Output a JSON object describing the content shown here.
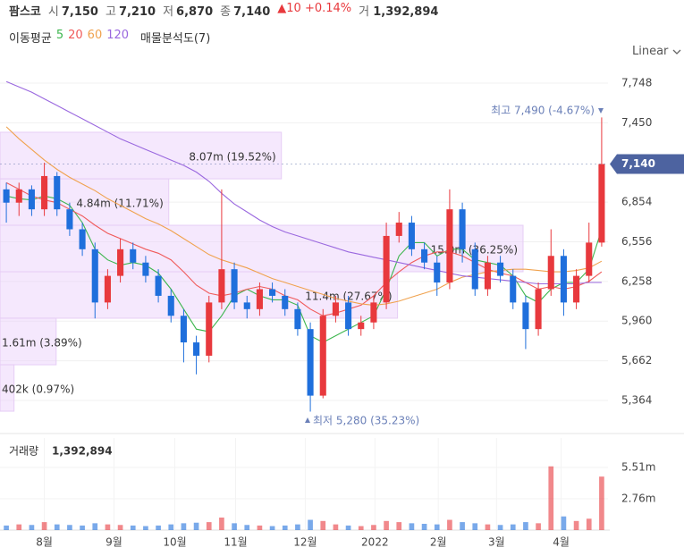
{
  "header": {
    "name": "팜스코",
    "items": [
      {
        "label": "시",
        "value": "7,150"
      },
      {
        "label": "고",
        "value": "7,210"
      },
      {
        "label": "저",
        "value": "6,870"
      },
      {
        "label": "종",
        "value": "7,140"
      }
    ],
    "change": "▲10 +0.14%",
    "volume": {
      "label": "거",
      "value": "1,392,894"
    },
    "ma_title": "이동평균",
    "profile_title": "매물분석도(7)",
    "scale_mode": "Linear"
  },
  "chart_data": {
    "type": "candlestick",
    "xlim": [
      -0.5,
      47.5
    ],
    "xticks": [
      {
        "value": 3.0,
        "label": "8월"
      },
      {
        "value": 8.5,
        "label": "9월"
      },
      {
        "value": 13.3,
        "label": "10월"
      },
      {
        "value": 18.1,
        "label": "11월"
      },
      {
        "value": 23.6,
        "label": "12월"
      },
      {
        "value": 29.1,
        "label": "2022"
      },
      {
        "value": 34.1,
        "label": "2월"
      },
      {
        "value": 38.7,
        "label": "3월"
      },
      {
        "value": 43.8,
        "label": "4월"
      }
    ],
    "ylim": [
      5216,
      7869
    ],
    "yticks": [
      {
        "value": 5364,
        "label": "5,364"
      },
      {
        "value": 5662,
        "label": "5,662"
      },
      {
        "value": 5960,
        "label": "5,960"
      },
      {
        "value": 6258,
        "label": "6,258"
      },
      {
        "value": 6556,
        "label": "6,556"
      },
      {
        "value": 6854,
        "label": "6,854"
      },
      {
        "value": 7450,
        "label": "7,450"
      },
      {
        "value": 7748,
        "label": "7,748"
      }
    ],
    "grid": true,
    "up_color": "#e8393d",
    "down_color": "#1f6fdc",
    "open": [
      6950,
      6850,
      6950,
      6800,
      7050,
      6800,
      6650,
      6500,
      6100,
      6300,
      6500,
      6400,
      6300,
      6150,
      6000,
      5800,
      5700,
      6100,
      6350,
      6100,
      6050,
      6200,
      6150,
      6050,
      5900,
      5400,
      6000,
      6100,
      5900,
      5950,
      6100,
      6600,
      6700,
      6500,
      6400,
      6250,
      6800,
      6500,
      6200,
      6400,
      6300,
      6100,
      5900,
      6200,
      6450,
      6100,
      6300,
      6550
    ],
    "high": [
      7000,
      7000,
      6980,
      7150,
      7080,
      6850,
      6700,
      6550,
      6350,
      6580,
      6550,
      6450,
      6350,
      6200,
      6050,
      5850,
      6150,
      6950,
      6400,
      6150,
      6250,
      6250,
      6200,
      6100,
      5950,
      6050,
      6150,
      6150,
      6000,
      6150,
      6700,
      6780,
      6750,
      6550,
      6450,
      6950,
      6850,
      6550,
      6450,
      6450,
      6350,
      6150,
      6250,
      6650,
      6500,
      6350,
      6700,
      7490
    ],
    "low": [
      6700,
      6750,
      6750,
      6750,
      6750,
      6600,
      6450,
      5980,
      6050,
      6250,
      6350,
      6250,
      6100,
      5950,
      5650,
      5560,
      5650,
      6050,
      6050,
      5980,
      6000,
      6100,
      6000,
      5850,
      5280,
      5380,
      5950,
      5850,
      5850,
      5900,
      6050,
      6550,
      6450,
      6350,
      6150,
      6200,
      6400,
      6150,
      6150,
      6250,
      6050,
      5750,
      5850,
      6150,
      6000,
      6050,
      6250,
      6520
    ],
    "close": [
      6850,
      6950,
      6800,
      7050,
      6800,
      6650,
      6500,
      6100,
      6300,
      6500,
      6400,
      6300,
      6150,
      6000,
      5800,
      5700,
      6100,
      6350,
      6100,
      6050,
      6200,
      6150,
      6050,
      5900,
      5400,
      6000,
      6100,
      5900,
      5950,
      6100,
      6600,
      6700,
      6500,
      6400,
      6250,
      6800,
      6500,
      6200,
      6400,
      6300,
      6100,
      5900,
      6200,
      6450,
      6100,
      6300,
      6550,
      7140
    ],
    "series": [
      {
        "name": "5",
        "color": "#3db64e",
        "values": [
          6900,
          6880,
          6870,
          6900,
          6880,
          6830,
          6700,
          6500,
          6420,
          6380,
          6400,
          6380,
          6320,
          6200,
          6050,
          5900,
          5880,
          6000,
          6150,
          6200,
          6150,
          6120,
          6120,
          6080,
          5850,
          5800,
          5850,
          5900,
          5950,
          6000,
          6200,
          6450,
          6550,
          6550,
          6450,
          6500,
          6500,
          6420,
          6400,
          6380,
          6300,
          6150,
          6100,
          6200,
          6250,
          6250,
          6350,
          6650
        ]
      },
      {
        "name": "20",
        "color": "#f05a5a",
        "values": [
          7000,
          6950,
          6900,
          6870,
          6850,
          6800,
          6750,
          6680,
          6620,
          6580,
          6540,
          6500,
          6470,
          6420,
          6330,
          6230,
          6170,
          6150,
          6170,
          6200,
          6220,
          6200,
          6150,
          6120,
          6050,
          6000,
          6020,
          6050,
          6080,
          6150,
          6250,
          6330,
          6400,
          6450,
          6480,
          6480,
          6450,
          6400,
          6350,
          6320,
          6300,
          6250,
          6200,
          6220,
          6200,
          6220,
          6260,
          6330
        ]
      },
      {
        "name": "60",
        "color": "#f0a24e",
        "values": [
          7420,
          7330,
          7250,
          7170,
          7100,
          7040,
          6990,
          6940,
          6880,
          6830,
          6780,
          6730,
          6690,
          6640,
          6580,
          6520,
          6460,
          6420,
          6390,
          6360,
          6320,
          6280,
          6250,
          6220,
          6190,
          6160,
          6130,
          6110,
          6090,
          6080,
          6090,
          6110,
          6140,
          6170,
          6200,
          6250,
          6290,
          6310,
          6330,
          6340,
          6350,
          6350,
          6340,
          6330,
          6330,
          6340,
          6360,
          6410
        ]
      },
      {
        "name": "120",
        "color": "#9a68df",
        "values": [
          7760,
          7720,
          7680,
          7630,
          7580,
          7530,
          7480,
          7430,
          7380,
          7330,
          7290,
          7250,
          7210,
          7170,
          7130,
          7080,
          7010,
          6920,
          6840,
          6780,
          6720,
          6670,
          6630,
          6600,
          6570,
          6540,
          6510,
          6480,
          6460,
          6440,
          6420,
          6400,
          6380,
          6360,
          6340,
          6320,
          6300,
          6290,
          6280,
          6270,
          6260,
          6250,
          6240,
          6240,
          6240,
          6240,
          6250,
          6250
        ]
      }
    ],
    "profile": {
      "bins": [
        5283,
        5632,
        5982,
        6331,
        6680,
        7029,
        7379
      ],
      "values": [
        402000,
        1610000,
        11400000,
        15000000,
        4840000,
        8070000
      ],
      "value_labels": [
        "402k (0.97%)",
        "1.61m (3.89%)",
        "11.4m (27.67%)",
        "15.0m (36.25%)",
        "4.84m (11.71%)",
        "8.07m (19.52%)"
      ]
    },
    "last_price": {
      "value": 7140,
      "label": "7,140"
    },
    "annotations": {
      "high": "최고 7,490 (-4.67%)",
      "low": "최저 5,280 (35.23%)"
    },
    "volume_title": "거래량",
    "volume": [
      400000,
      500000,
      450000,
      700000,
      500000,
      450000,
      400000,
      600000,
      500000,
      450000,
      400000,
      350000,
      400000,
      500000,
      600000,
      650000,
      700000,
      1100000,
      600000,
      450000,
      400000,
      350000,
      400000,
      500000,
      900000,
      800000,
      500000,
      400000,
      350000,
      450000,
      800000,
      700000,
      600000,
      550000,
      500000,
      900000,
      700000,
      600000,
      500000,
      450000,
      500000,
      700000,
      600000,
      5600000,
      1200000,
      800000,
      1000000,
      4700000
    ],
    "volume_ylim": [
      0,
      8090000
    ],
    "volume_yticks": [
      {
        "value": 2760000,
        "label": "2.76m"
      },
      {
        "value": 5510000,
        "label": "5.51m"
      }
    ]
  }
}
